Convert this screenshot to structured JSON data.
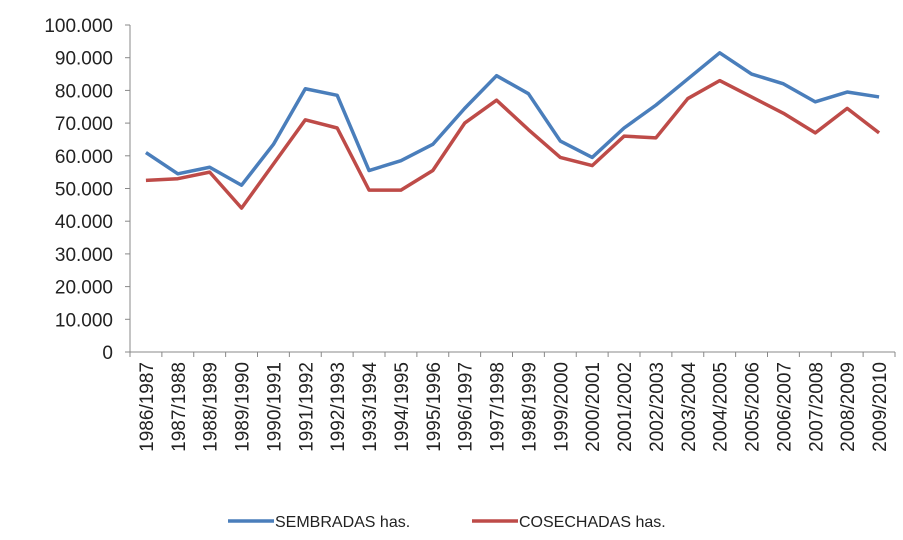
{
  "chart_data": {
    "type": "line",
    "categories": [
      "1986/1987",
      "1987/1988",
      "1988/1989",
      "1989/1990",
      "1990/1991",
      "1991/1992",
      "1992/1993",
      "1993/1994",
      "1994/1995",
      "1995/1996",
      "1996/1997",
      "1997/1998",
      "1998/1999",
      "1999/2000",
      "2000/2001",
      "2001/2002",
      "2002/2003",
      "2003/2004",
      "2004/2005",
      "2005/2006",
      "2006/2007",
      "2007/2008",
      "2008/2009",
      "2009/2010"
    ],
    "series": [
      {
        "name": "SEMBRADAS has.",
        "color": "#4a7ebb",
        "values": [
          61000,
          54500,
          56500,
          51000,
          63500,
          80500,
          78500,
          55500,
          58500,
          63500,
          74500,
          84500,
          79000,
          64500,
          59500,
          68500,
          75500,
          83500,
          91500,
          85000,
          82000,
          76500,
          79500,
          78000
        ]
      },
      {
        "name": "COSECHADAS has.",
        "color": "#be4b48",
        "values": [
          52500,
          53000,
          55000,
          44000,
          57500,
          71000,
          68500,
          49500,
          49500,
          55500,
          70000,
          77000,
          68000,
          59500,
          57000,
          66000,
          65500,
          77500,
          83000,
          78000,
          73000,
          67000,
          74500,
          67000
        ]
      }
    ],
    "ylim": [
      0,
      100000
    ],
    "yticks": [
      0,
      {
        "value": 10000,
        "label": "10.000"
      },
      {
        "value": 20000,
        "label": "20.000"
      },
      {
        "value": 30000,
        "label": "30.000"
      },
      {
        "value": 40000,
        "label": "40.000"
      },
      {
        "value": 50000,
        "label": "50.000"
      },
      {
        "value": 60000,
        "label": "60.000"
      },
      {
        "value": 70000,
        "label": "70.000"
      },
      {
        "value": 80000,
        "label": "80.000"
      },
      {
        "value": 90000,
        "label": "90.000"
      },
      {
        "value": 100000,
        "label": "100.000"
      }
    ],
    "grid": false,
    "legend": "bottom"
  }
}
